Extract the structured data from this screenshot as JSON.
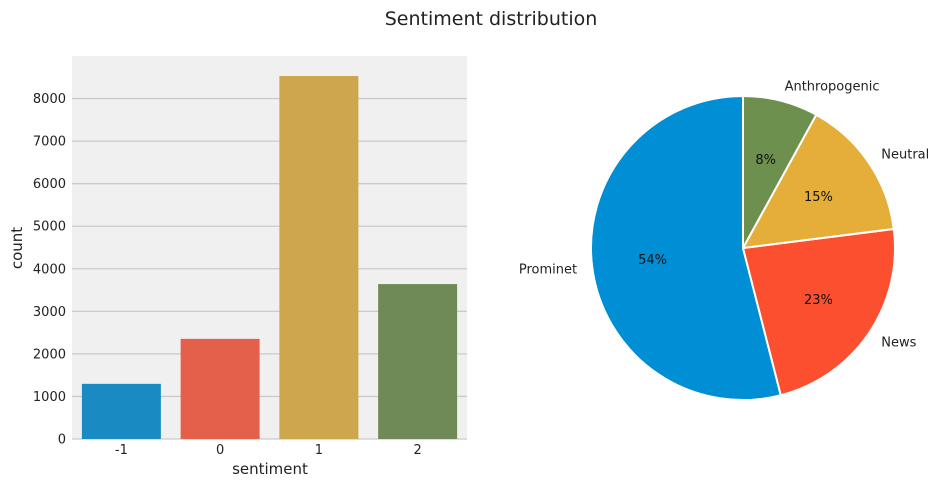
{
  "figure": {
    "title": "Sentiment distribution"
  },
  "chart_data": [
    {
      "type": "bar",
      "categories": [
        "-1",
        "0",
        "1",
        "2"
      ],
      "values": [
        1296,
        2353,
        8530,
        3640
      ],
      "colors": [
        "#1a8ac2",
        "#e4604a",
        "#cea64e",
        "#6f8a56"
      ],
      "xlabel": "sentiment",
      "ylabel": "count",
      "ylim": [
        0,
        9000
      ],
      "yticks": [
        0,
        1000,
        2000,
        3000,
        4000,
        5000,
        6000,
        7000,
        8000
      ],
      "ytick_labels": [
        "0",
        "1000",
        "2000",
        "3000",
        "4000",
        "5000",
        "6000",
        "7000",
        "8000"
      ],
      "grid": true,
      "background": "#f0f0f0"
    },
    {
      "type": "pie",
      "labels": [
        "Prominet",
        "News",
        "Neutral",
        "Anthropogenic"
      ],
      "values": [
        54,
        23,
        15,
        8
      ],
      "pct_labels": [
        "54%",
        "23%",
        "15%",
        "8%"
      ],
      "colors": [
        "#008fd5",
        "#fc4f30",
        "#e5ae38",
        "#6d904f"
      ],
      "start_angle_deg": 90,
      "direction": "counterclockwise"
    }
  ]
}
